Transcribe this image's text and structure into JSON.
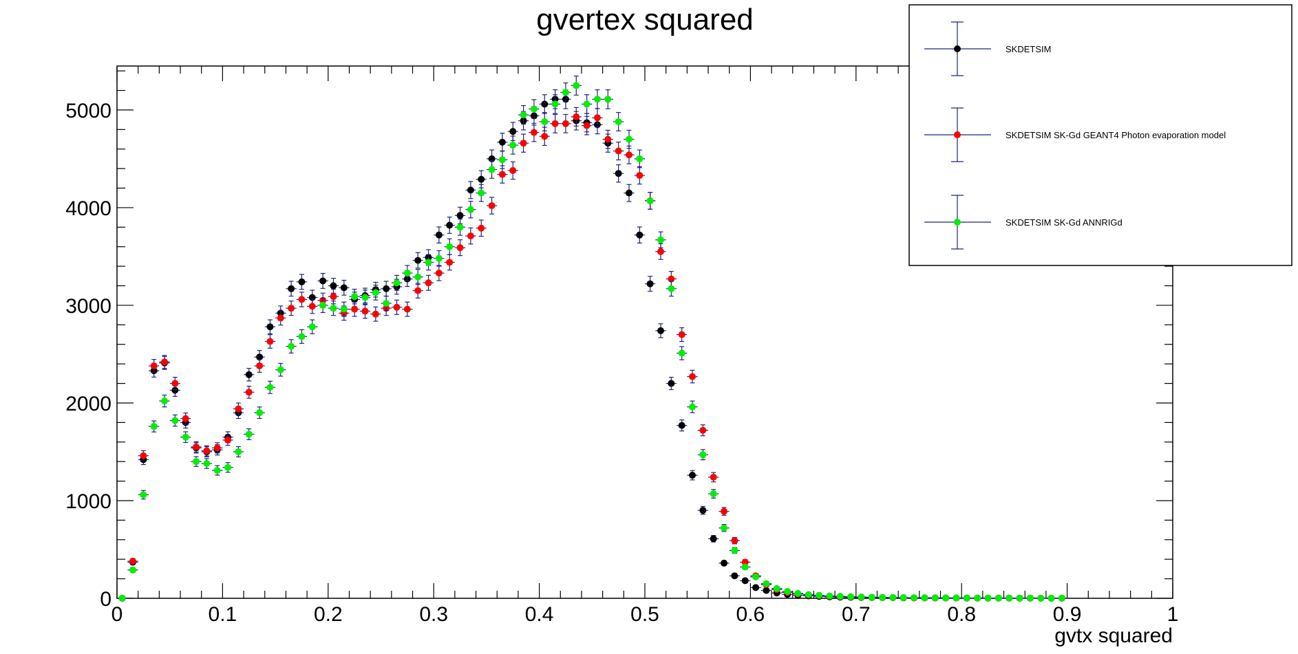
{
  "chart_data": {
    "type": "scatter",
    "title": "gvertex squared",
    "xlabel": "gvtx squared",
    "ylabel": "",
    "xlim": [
      0,
      1
    ],
    "ylim": [
      0,
      5450
    ],
    "x_ticks": [
      "0",
      "0.1",
      "0.2",
      "0.3",
      "0.4",
      "0.5",
      "0.6",
      "0.7",
      "0.8",
      "0.9",
      "1"
    ],
    "y_ticks": [
      "0",
      "1000",
      "2000",
      "3000",
      "4000",
      "5000"
    ],
    "bin_width": 0.01,
    "legend_position": "top-right",
    "error_bar_color": "#1a237e",
    "series": [
      {
        "name": "SKDETSIM",
        "color": "#000000",
        "x": [
          0.005,
          0.015,
          0.025,
          0.035,
          0.045,
          0.055,
          0.065,
          0.075,
          0.085,
          0.095,
          0.105,
          0.115,
          0.125,
          0.135,
          0.145,
          0.155,
          0.165,
          0.175,
          0.185,
          0.195,
          0.205,
          0.215,
          0.225,
          0.235,
          0.245,
          0.255,
          0.265,
          0.275,
          0.285,
          0.295,
          0.305,
          0.315,
          0.325,
          0.335,
          0.345,
          0.355,
          0.365,
          0.375,
          0.385,
          0.395,
          0.405,
          0.415,
          0.425,
          0.435,
          0.445,
          0.455,
          0.465,
          0.475,
          0.485,
          0.495,
          0.505,
          0.515,
          0.525,
          0.535,
          0.545,
          0.555,
          0.565,
          0.575,
          0.585,
          0.595,
          0.605,
          0.615,
          0.625,
          0.635,
          0.645,
          0.655,
          0.665,
          0.675,
          0.685,
          0.695,
          0.705,
          0.715,
          0.725,
          0.735,
          0.745,
          0.755,
          0.765,
          0.775,
          0.785,
          0.795,
          0.805,
          0.815,
          0.825,
          0.835,
          0.845,
          0.855,
          0.865,
          0.875,
          0.885,
          0.895
        ],
        "y": [
          0,
          370,
          1420,
          2330,
          2410,
          2130,
          1800,
          1540,
          1500,
          1520,
          1650,
          1900,
          2290,
          2470,
          2780,
          2920,
          3170,
          3240,
          3080,
          3250,
          3200,
          3180,
          3060,
          3100,
          3160,
          3170,
          3190,
          3270,
          3460,
          3490,
          3720,
          3820,
          3920,
          4180,
          4290,
          4500,
          4670,
          4780,
          4890,
          4940,
          5060,
          5110,
          5110,
          4890,
          4870,
          4850,
          4660,
          4350,
          4150,
          3720,
          3220,
          2740,
          2200,
          1770,
          1260,
          900,
          610,
          360,
          230,
          180,
          110,
          80,
          55,
          40,
          30,
          25,
          20,
          15,
          12,
          10,
          9,
          8,
          7,
          6,
          5,
          4,
          4,
          3,
          3,
          3,
          2,
          2,
          2,
          2,
          2,
          1,
          1,
          1,
          1,
          1
        ]
      },
      {
        "name": "SKDETSIM SK-Gd GEANT4 Photon evaporation model",
        "color": "#ff0000",
        "x": [
          0.005,
          0.015,
          0.025,
          0.035,
          0.045,
          0.055,
          0.065,
          0.075,
          0.085,
          0.095,
          0.105,
          0.115,
          0.125,
          0.135,
          0.145,
          0.155,
          0.165,
          0.175,
          0.185,
          0.195,
          0.205,
          0.215,
          0.225,
          0.235,
          0.245,
          0.255,
          0.265,
          0.275,
          0.285,
          0.295,
          0.305,
          0.315,
          0.325,
          0.335,
          0.345,
          0.355,
          0.365,
          0.375,
          0.385,
          0.395,
          0.405,
          0.415,
          0.425,
          0.435,
          0.445,
          0.455,
          0.465,
          0.475,
          0.485,
          0.495,
          0.505,
          0.515,
          0.525,
          0.535,
          0.545,
          0.555,
          0.565,
          0.575,
          0.585,
          0.595,
          0.605,
          0.615,
          0.625,
          0.635,
          0.645,
          0.655,
          0.665,
          0.675,
          0.685,
          0.695,
          0.705,
          0.715,
          0.725,
          0.735,
          0.745,
          0.755,
          0.765,
          0.775,
          0.785,
          0.795,
          0.805,
          0.815,
          0.825,
          0.835,
          0.845,
          0.855,
          0.865,
          0.875,
          0.885,
          0.895
        ],
        "y": [
          0,
          380,
          1460,
          2380,
          2420,
          2200,
          1840,
          1550,
          1510,
          1540,
          1620,
          1940,
          2110,
          2380,
          2630,
          2870,
          2970,
          3060,
          2990,
          3050,
          3090,
          2920,
          2960,
          2940,
          2910,
          2970,
          2980,
          2960,
          3150,
          3230,
          3330,
          3440,
          3590,
          3710,
          3790,
          4020,
          4340,
          4380,
          4660,
          4770,
          4730,
          4860,
          4860,
          4930,
          4840,
          4920,
          4700,
          4580,
          4540,
          4330,
          4070,
          3550,
          3270,
          2700,
          2270,
          1720,
          1240,
          890,
          590,
          370,
          230,
          140,
          90,
          60,
          45,
          35,
          28,
          22,
          18,
          15,
          12,
          10,
          8,
          7,
          6,
          5,
          5,
          4,
          4,
          3,
          3,
          3,
          2,
          2,
          2,
          2,
          2,
          1,
          1,
          1
        ]
      },
      {
        "name": "SKDETSIM SK-Gd ANNRIGd",
        "color": "#00ee00",
        "x": [
          0.005,
          0.015,
          0.025,
          0.035,
          0.045,
          0.055,
          0.065,
          0.075,
          0.085,
          0.095,
          0.105,
          0.115,
          0.125,
          0.135,
          0.145,
          0.155,
          0.165,
          0.175,
          0.185,
          0.195,
          0.205,
          0.215,
          0.225,
          0.235,
          0.245,
          0.255,
          0.265,
          0.275,
          0.285,
          0.295,
          0.305,
          0.315,
          0.325,
          0.335,
          0.345,
          0.355,
          0.365,
          0.375,
          0.385,
          0.395,
          0.405,
          0.415,
          0.425,
          0.435,
          0.445,
          0.455,
          0.465,
          0.475,
          0.485,
          0.495,
          0.505,
          0.515,
          0.525,
          0.535,
          0.545,
          0.555,
          0.565,
          0.575,
          0.585,
          0.595,
          0.605,
          0.615,
          0.625,
          0.635,
          0.645,
          0.655,
          0.665,
          0.675,
          0.685,
          0.695,
          0.705,
          0.715,
          0.725,
          0.735,
          0.745,
          0.755,
          0.765,
          0.775,
          0.785,
          0.795,
          0.805,
          0.815,
          0.825,
          0.835,
          0.845,
          0.855,
          0.865,
          0.875,
          0.885,
          0.895
        ],
        "y": [
          0,
          290,
          1060,
          1760,
          2020,
          1820,
          1650,
          1400,
          1380,
          1310,
          1340,
          1500,
          1680,
          1900,
          2160,
          2340,
          2580,
          2680,
          2780,
          3000,
          2970,
          2960,
          3090,
          3080,
          3130,
          3020,
          3230,
          3330,
          3290,
          3440,
          3480,
          3600,
          3800,
          3980,
          4150,
          4390,
          4490,
          4640,
          4950,
          5010,
          4880,
          5060,
          5180,
          5250,
          5060,
          5110,
          5110,
          4880,
          4700,
          4500,
          4070,
          3670,
          3170,
          2510,
          1960,
          1470,
          1070,
          720,
          490,
          320,
          220,
          150,
          100,
          70,
          50,
          38,
          30,
          24,
          20,
          16,
          13,
          11,
          9,
          8,
          7,
          6,
          5,
          5,
          4,
          4,
          3,
          3,
          3,
          2,
          2,
          2,
          2,
          1,
          1,
          1
        ]
      }
    ]
  }
}
